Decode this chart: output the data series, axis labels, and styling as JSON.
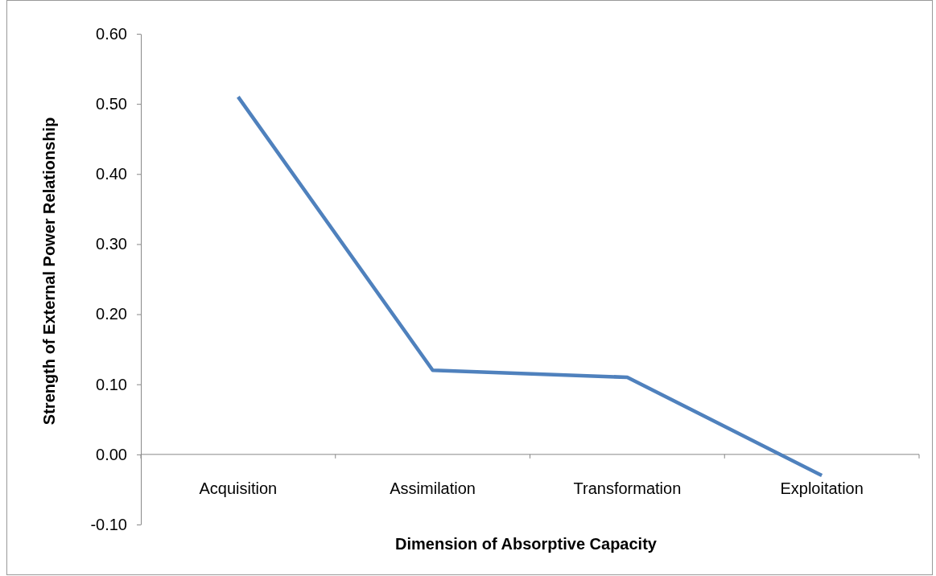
{
  "chart_data": {
    "type": "line",
    "xlabel": "Dimension of Absorptive Capacity",
    "ylabel": "Strength of External Power Relationship",
    "categories": [
      "Acquisition",
      "Assimilation",
      "Transformation",
      "Exploitation"
    ],
    "series": [
      {
        "color": "#4f81bd",
        "values": [
          0.51,
          0.12,
          0.11,
          -0.03
        ]
      }
    ],
    "ylim": [
      -0.1,
      0.6
    ],
    "yticks": [
      {
        "value": -0.1,
        "label": "-0.10"
      },
      {
        "value": 0,
        "label": "0.00"
      },
      {
        "value": 0.1,
        "label": "0.10"
      },
      {
        "value": 0.2,
        "label": "0.20"
      },
      {
        "value": 0.3,
        "label": "0.30"
      },
      {
        "value": 0.4,
        "label": "0.40"
      },
      {
        "value": 0.5,
        "label": "0.50"
      },
      {
        "value": 0.6,
        "label": "0.60"
      }
    ]
  }
}
